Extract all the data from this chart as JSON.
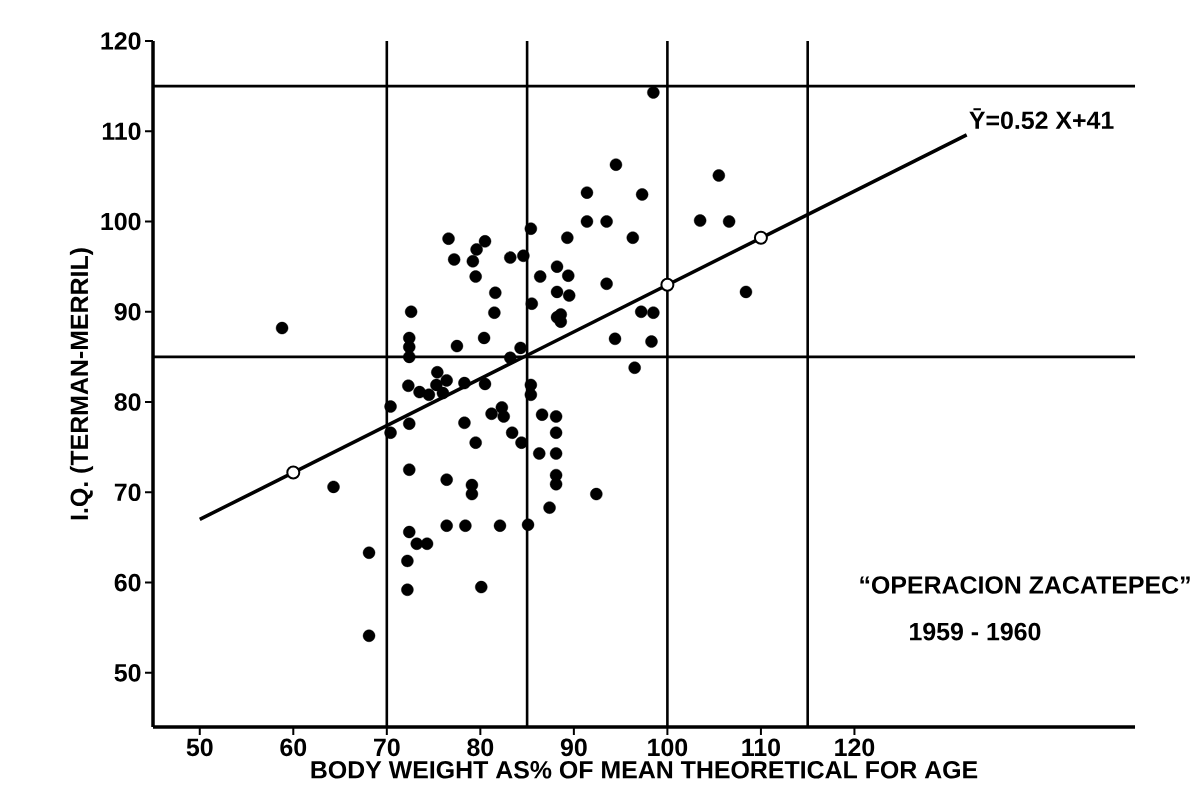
{
  "chart_data": {
    "type": "scatter",
    "xlabel": "BODY WEIGHT AS% OF MEAN THEORETICAL FOR AGE",
    "ylabel": "I.Q. (TERMAN-MERRIL)",
    "xlim": [
      45,
      150
    ],
    "ylim": [
      44,
      120
    ],
    "xticks": [
      50,
      60,
      70,
      80,
      90,
      100,
      110,
      120
    ],
    "yticks": [
      50,
      60,
      70,
      80,
      90,
      100,
      110,
      120
    ],
    "series": [
      {
        "color": "#000000",
        "marker": "circle",
        "x": [
          58.8,
          64.3,
          68.1,
          68.1,
          70.4,
          70.4,
          72.4,
          72.4,
          76.4,
          79.1,
          79.1,
          72.4,
          73.2,
          74.3,
          76.4,
          78.4,
          82.1,
          85.1,
          72.2,
          72.2,
          80.1,
          87.4,
          78.3,
          79.5,
          83.4,
          84.4,
          86.3,
          86.6,
          88.1,
          88.1,
          88.1,
          88.1,
          88.1,
          92.4,
          88.6,
          88.6,
          97.2,
          98.5,
          94.4,
          98.3,
          96.5,
          81.2,
          82.3,
          82.5,
          76.6,
          77.2,
          79.6,
          80.5,
          79.2,
          79.5,
          81.6,
          81.5,
          83.2,
          84.6,
          85.4,
          86.4,
          85.5,
          72.6,
          72.4,
          72.4,
          72.4,
          77.5,
          80.4,
          84.3,
          83.2,
          75.4,
          72.3,
          73.5,
          75.3,
          76.4,
          74.5,
          76.0,
          78.3,
          80.5,
          85.4,
          85.4,
          88.2,
          88.2,
          88.2,
          98.5,
          94.5,
          91.4,
          97.3,
          105.5,
          91.4,
          93.5,
          103.5,
          106.6,
          89.3,
          96.3,
          89.4,
          93.5,
          89.5,
          108.4
        ],
        "values": [
          88.2,
          70.6,
          63.3,
          54.1,
          79.5,
          76.6,
          77.6,
          72.5,
          71.4,
          70.8,
          69.8,
          65.6,
          64.3,
          64.3,
          66.3,
          66.3,
          66.3,
          66.4,
          62.4,
          59.2,
          59.5,
          68.3,
          77.7,
          75.5,
          76.6,
          75.5,
          74.3,
          78.6,
          78.4,
          76.6,
          74.3,
          71.9,
          70.9,
          69.8,
          89.7,
          88.9,
          90.0,
          89.9,
          87.0,
          86.7,
          83.8,
          78.7,
          79.4,
          78.4,
          98.1,
          95.8,
          96.9,
          97.8,
          95.6,
          93.9,
          92.1,
          89.9,
          96.0,
          96.2,
          99.2,
          93.9,
          90.9,
          90.0,
          87.1,
          86.1,
          85.0,
          86.2,
          87.1,
          86.0,
          84.9,
          83.3,
          81.8,
          81.1,
          81.9,
          82.4,
          80.8,
          81.0,
          82.1,
          82.0,
          81.9,
          80.8,
          95.0,
          92.2,
          89.4,
          114.3,
          106.3,
          103.2,
          103.0,
          105.1,
          100.0,
          100.0,
          100.1,
          100.0,
          98.2,
          98.2,
          94.0,
          93.1,
          91.8,
          92.2
        ]
      },
      {
        "type": "line",
        "color": "#000000",
        "marker": "none",
        "x": [
          50,
          132
        ],
        "values": [
          67,
          109.6
        ]
      },
      {
        "color": "#000000",
        "marker": "circle",
        "x": [
          60,
          100,
          110
        ],
        "values": [
          72.2,
          93,
          98.2
        ]
      }
    ],
    "ref_lines": [
      {
        "axis": "x",
        "value": 70
      },
      {
        "axis": "x",
        "value": 85
      },
      {
        "axis": "x",
        "value": 100
      },
      {
        "axis": "x",
        "value": 115
      },
      {
        "axis": "y",
        "value": 85
      },
      {
        "axis": "y",
        "value": 115
      }
    ],
    "annotations": [
      {
        "text": "Ȳ=0.52 X+41",
        "x": 132,
        "y": 110
      },
      "“OPERACION ZACATEPEC”",
      "1959 - 1960"
    ]
  }
}
